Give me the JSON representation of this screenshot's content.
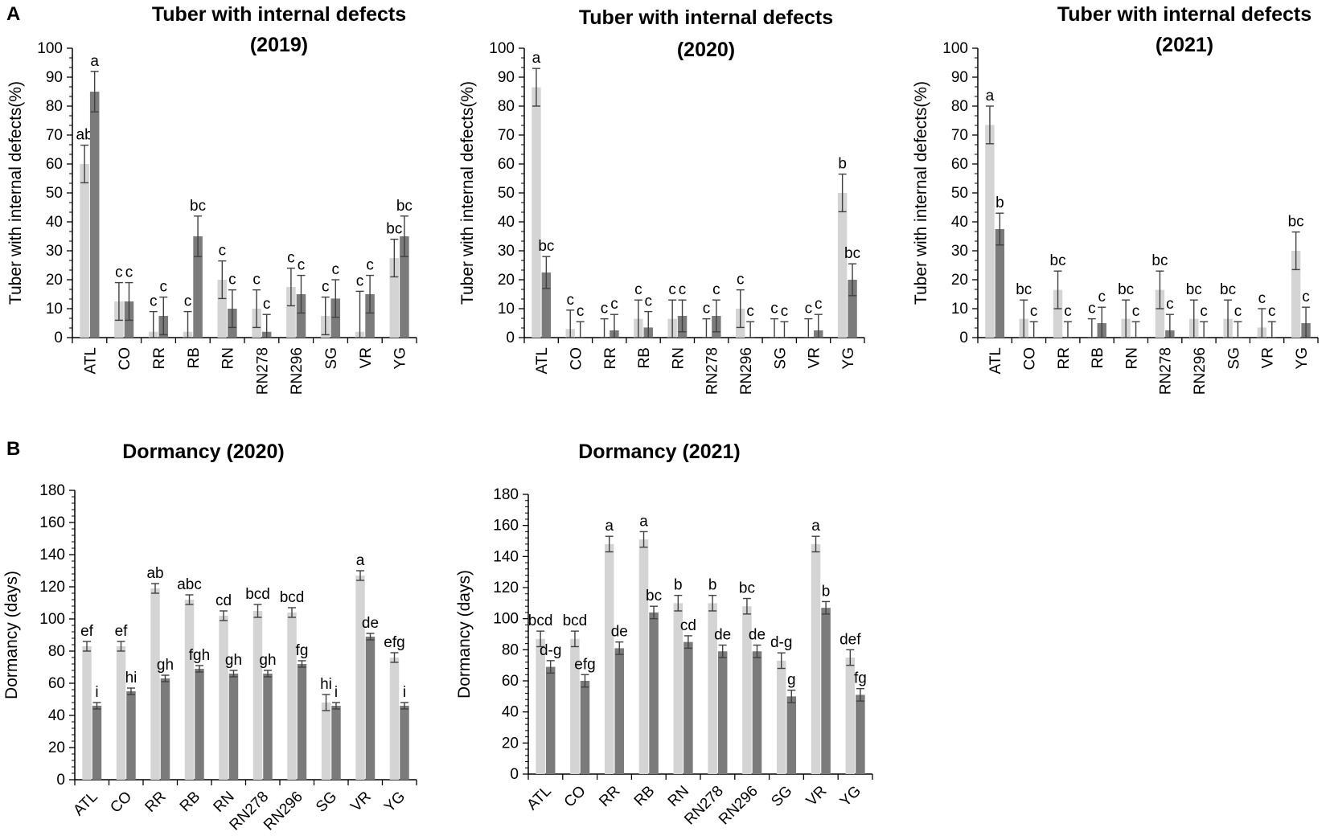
{
  "panels": {
    "a": "A",
    "b": "B"
  },
  "colors": {
    "series1": "#d4d4d4",
    "series2": "#7b7b7b",
    "axis": "#000000",
    "errbar": "#404040"
  },
  "chart_data": [
    {
      "id": "c2019",
      "type": "bar",
      "title": [
        "Tuber with internal defects",
        "(2019)"
      ],
      "ylabel": "Tuber with internal defects(%)",
      "xlabel": "",
      "ylim": [
        0,
        100
      ],
      "ystep": 10,
      "yminor": 2,
      "categories": [
        "ATL",
        "CO",
        "RR",
        "RB",
        "RN",
        "RN278",
        "RN296",
        "SG",
        "VR",
        "YG"
      ],
      "xrotate": -90,
      "series": [
        {
          "name": "series1",
          "values": [
            60,
            12.5,
            2,
            2,
            20,
            10,
            17.5,
            7.5,
            2,
            27.5
          ],
          "err": [
            6.5,
            6.5,
            7,
            7,
            6.5,
            6.5,
            6.5,
            6.5,
            14,
            6.5
          ],
          "labels": [
            "ab",
            "c",
            "c",
            "c",
            "c",
            "c",
            "c",
            "c",
            "c",
            "bc"
          ]
        },
        {
          "name": "series2",
          "values": [
            85,
            12.5,
            7.5,
            35,
            10,
            2,
            15,
            13.5,
            15,
            35
          ],
          "err": [
            7,
            6.5,
            6.5,
            7,
            6.5,
            6,
            6.5,
            6.5,
            6.5,
            7
          ],
          "labels": [
            "a",
            "c",
            "c",
            "bc",
            "c",
            "c",
            "c",
            "c",
            "c",
            "bc"
          ]
        }
      ]
    },
    {
      "id": "c2020",
      "type": "bar",
      "title": [
        "Tuber with internal defects",
        "(2020)"
      ],
      "ylabel": "Tuber with internal defects(%)",
      "xlabel": "",
      "ylim": [
        0,
        100
      ],
      "ystep": 10,
      "yminor": 2,
      "categories": [
        "ATL",
        "CO",
        "RR",
        "RB",
        "RN",
        "RN278",
        "RN296",
        "SG",
        "VR",
        "YG"
      ],
      "xrotate": -90,
      "series": [
        {
          "name": "series1",
          "values": [
            86.5,
            3,
            0,
            6.5,
            6.5,
            0,
            10,
            0,
            0,
            50
          ],
          "err": [
            6.5,
            6.5,
            6.5,
            6.5,
            6.5,
            6.5,
            6.5,
            6.5,
            6.5,
            6.5
          ],
          "labels": [
            "a",
            "c",
            "c",
            "c",
            "c",
            "c",
            "c",
            "c",
            "c",
            "b"
          ]
        },
        {
          "name": "series2",
          "values": [
            22.5,
            0,
            2.5,
            3.5,
            7.5,
            7.5,
            0,
            0,
            2.5,
            20
          ],
          "err": [
            5.5,
            5.5,
            5.5,
            5.5,
            5.5,
            5.5,
            5.5,
            5.5,
            5.5,
            5.5
          ],
          "labels": [
            "bc",
            "c",
            "c",
            "c",
            "c",
            "c",
            "c",
            "c",
            "c",
            "bc"
          ]
        }
      ]
    },
    {
      "id": "c2021",
      "type": "bar",
      "title": [
        "Tuber with internal defects",
        "(2021)"
      ],
      "ylabel": "Tuber with internal defects(%)",
      "xlabel": "",
      "ylim": [
        0,
        100
      ],
      "ystep": 10,
      "yminor": 2,
      "categories": [
        "ATL",
        "CO",
        "RR",
        "RB",
        "RN",
        "RN278",
        "RN296",
        "SG",
        "VR",
        "YG"
      ],
      "xrotate": -90,
      "series": [
        {
          "name": "series1",
          "values": [
            73.5,
            6.5,
            16.5,
            0,
            6.5,
            16.5,
            6.5,
            6.5,
            3.5,
            30
          ],
          "err": [
            6.5,
            6.5,
            6.5,
            6.5,
            6.5,
            6.5,
            6.5,
            6.5,
            6.5,
            6.5
          ],
          "labels": [
            "a",
            "bc",
            "bc",
            "c",
            "bc",
            "bc",
            "bc",
            "bc",
            "c",
            "bc"
          ]
        },
        {
          "name": "series2",
          "values": [
            37.5,
            0,
            0,
            5,
            0,
            2.5,
            0,
            0,
            0,
            5
          ],
          "err": [
            5.5,
            5.5,
            5.5,
            5.5,
            5.5,
            5.5,
            5.5,
            5.5,
            5.5,
            5.5
          ],
          "labels": [
            "b",
            "c",
            "c",
            "c",
            "c",
            "c",
            "c",
            "c",
            "c",
            "c"
          ]
        }
      ]
    },
    {
      "id": "d2020",
      "type": "bar",
      "title": [
        "Dormancy (2020)"
      ],
      "ylabel": "Dormancy (days)",
      "xlabel": "",
      "ylim": [
        0,
        180
      ],
      "ystep": 20,
      "yminor": 4,
      "categories": [
        "ATL",
        "CO",
        "RR",
        "RB",
        "RN",
        "RN278",
        "RN296",
        "SG",
        "VR",
        "YG"
      ],
      "xrotate": -45,
      "series": [
        {
          "name": "series1",
          "values": [
            83,
            83,
            119,
            112,
            102,
            105,
            104,
            48,
            127,
            76
          ],
          "err": [
            3,
            3,
            3,
            3,
            3,
            4,
            3,
            5,
            3,
            3
          ],
          "labels": [
            "ef",
            "ef",
            "ab",
            "abc",
            "cd",
            "bcd",
            "bcd",
            "hi",
            "a",
            "efg"
          ]
        },
        {
          "name": "series2",
          "values": [
            46,
            55,
            63,
            69,
            66,
            66,
            72,
            46,
            89,
            46
          ],
          "err": [
            2,
            2,
            2,
            2,
            2,
            2,
            2,
            2,
            2,
            2
          ],
          "labels": [
            "i",
            "hi",
            "gh",
            "fgh",
            "gh",
            "gh",
            "fg",
            "i",
            "de",
            "i"
          ]
        }
      ]
    },
    {
      "id": "d2021",
      "type": "bar",
      "title": [
        "Dormancy (2021)"
      ],
      "ylabel": "Dormancy (days)",
      "xlabel": "",
      "ylim": [
        0,
        180
      ],
      "ystep": 20,
      "yminor": 4,
      "categories": [
        "ATL",
        "CO",
        "RR",
        "RB",
        "RN",
        "RN278",
        "RN296",
        "SG",
        "VR",
        "YG"
      ],
      "xrotate": -45,
      "series": [
        {
          "name": "series1",
          "values": [
            87,
            87,
            148,
            151,
            110,
            110,
            108,
            73,
            148,
            75
          ],
          "err": [
            5,
            5,
            5,
            5,
            5,
            5,
            5,
            5,
            5,
            5
          ],
          "labels": [
            "bcd",
            "bcd",
            "a",
            "a",
            "b",
            "b",
            "bc",
            "d-g",
            "a",
            "def"
          ]
        },
        {
          "name": "series2",
          "values": [
            69,
            60,
            81,
            104,
            85,
            79,
            79,
            50,
            107,
            51
          ],
          "err": [
            4,
            4,
            4,
            4,
            4,
            4,
            4,
            4,
            4,
            4
          ],
          "labels": [
            "d-g",
            "efg",
            "de",
            "bc",
            "cd",
            "de",
            "de",
            "g",
            "b",
            "fg"
          ]
        }
      ]
    }
  ]
}
